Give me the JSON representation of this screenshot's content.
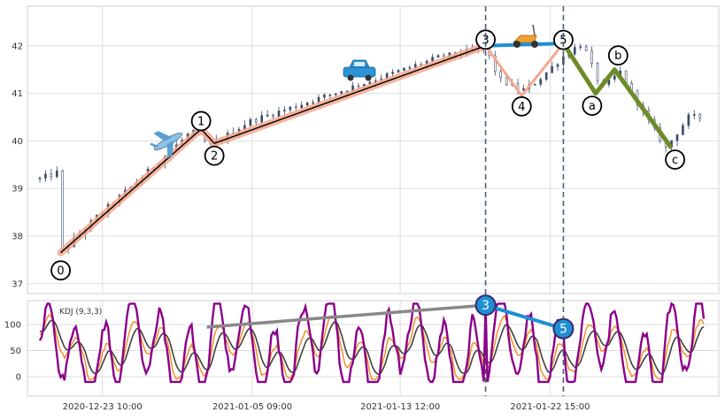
{
  "chart_data": [
    {
      "type": "candlestick",
      "title": "",
      "xlabel": "",
      "ylabel": "",
      "ylim": [
        36.8,
        42.85
      ],
      "yticks": [
        "37",
        "38",
        "39",
        "40",
        "41",
        "42"
      ],
      "xticks": [
        "2020-12-23 10:00",
        "2021-01-05 09:00",
        "2021-01-13 12:00",
        "2021-01-22 15:00"
      ],
      "grid": true,
      "colors": {
        "up": "#3b4a6b",
        "down": "#3b4a6b",
        "wave": "#000000",
        "wave_halo": "#f3a88e",
        "b_wave": "#1f8fd4",
        "correction": "#6e8b2a",
        "vline": "#4a6178"
      },
      "price_path": [
        {
          "x": 0,
          "y": 39.2
        },
        {
          "x": 10,
          "y": 39.35
        },
        {
          "x": 11,
          "y": 37.65
        },
        {
          "x": 30,
          "y": 38.4
        },
        {
          "x": 50,
          "y": 39.1
        },
        {
          "x": 80,
          "y": 40.2
        },
        {
          "x": 90,
          "y": 39.9
        },
        {
          "x": 110,
          "y": 40.4
        },
        {
          "x": 140,
          "y": 40.8
        },
        {
          "x": 170,
          "y": 41.2
        },
        {
          "x": 210,
          "y": 41.75
        },
        {
          "x": 235,
          "y": 41.95
        },
        {
          "x": 242,
          "y": 41.3
        },
        {
          "x": 254,
          "y": 41.05
        },
        {
          "x": 262,
          "y": 41.25
        },
        {
          "x": 278,
          "y": 41.85
        },
        {
          "x": 286,
          "y": 42.05
        },
        {
          "x": 296,
          "y": 41.1
        },
        {
          "x": 306,
          "y": 41.45
        },
        {
          "x": 318,
          "y": 40.6
        },
        {
          "x": 330,
          "y": 39.85
        },
        {
          "x": 342,
          "y": 40.5
        }
      ],
      "waves": [
        {
          "label": "0",
          "x": 11,
          "y": 37.65
        },
        {
          "label": "1",
          "x": 85,
          "y": 40.25
        },
        {
          "label": "2",
          "x": 92,
          "y": 39.95
        },
        {
          "label": "3",
          "x": 235,
          "y": 42.0
        },
        {
          "label": "4",
          "x": 254,
          "y": 40.95
        },
        {
          "label": "5",
          "x": 276,
          "y": 42.05
        }
      ],
      "corrections": [
        {
          "label": "a",
          "x": 293,
          "y": 41.0
        },
        {
          "label": "b",
          "x": 303,
          "y": 41.5
        },
        {
          "label": "c",
          "x": 333,
          "y": 39.85
        }
      ],
      "icons": [
        "airplane-icon",
        "car-icon",
        "scooter-icon"
      ],
      "vlines_x": [
        235,
        276
      ]
    },
    {
      "type": "line",
      "title": "",
      "legend": "KDJ (9,3,3)",
      "ylim": [
        -35,
        145
      ],
      "yticks": [
        "0",
        "50",
        "100"
      ],
      "series": [
        {
          "name": "",
          "color": "#8b008b"
        },
        {
          "name": "",
          "color": "#f28b1c"
        },
        {
          "name": "",
          "color": "#404040"
        }
      ],
      "divergence": [
        {
          "label": "3",
          "x": 235,
          "y": 137
        },
        {
          "label": "5",
          "x": 276,
          "y": 92
        }
      ],
      "trend_line_start": {
        "x": 88,
        "y": 95
      }
    }
  ]
}
